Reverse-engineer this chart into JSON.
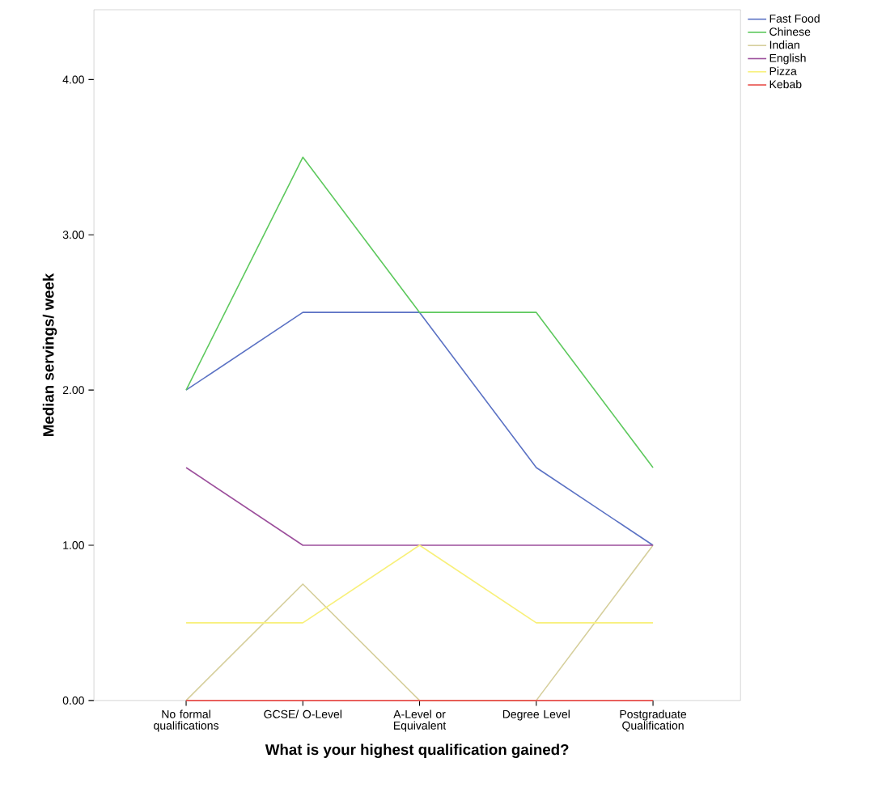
{
  "chart_data": {
    "type": "line",
    "xlabel": "What is your highest qualification gained?",
    "ylabel": "Median servings/ week",
    "categories": [
      "No formal qualifications",
      "GCSE/ O-Level",
      "A-Level or Equivalent",
      "Degree Level",
      "Postgraduate Qualification"
    ],
    "series": [
      {
        "name": "Fast Food",
        "color": "#5b72c4",
        "values": [
          2,
          2.5,
          2.5,
          1.5,
          1
        ]
      },
      {
        "name": "Chinese",
        "color": "#5ec95e",
        "values": [
          2,
          3.5,
          2.5,
          2.5,
          1.5
        ]
      },
      {
        "name": "Indian",
        "color": "#d6cf9c",
        "values": [
          0,
          0.75,
          0,
          0,
          1
        ]
      },
      {
        "name": "English",
        "color": "#9c4f9c",
        "values": [
          1.5,
          1,
          1,
          1,
          1
        ]
      },
      {
        "name": "Pizza",
        "color": "#f8f07a",
        "values": [
          0.5,
          0.5,
          1,
          0.5,
          0.5
        ]
      },
      {
        "name": "Kebab",
        "color": "#e8504c",
        "values": [
          0,
          0,
          0,
          0,
          0
        ]
      }
    ],
    "ylim": [
      0,
      4.45
    ],
    "yticks": [
      {
        "value": 0,
        "label": "0.00"
      },
      {
        "value": 1,
        "label": "1.00"
      },
      {
        "value": 2,
        "label": "2.00"
      },
      {
        "value": 3,
        "label": "3.00"
      },
      {
        "value": 4,
        "label": "4.00"
      }
    ],
    "grid": false,
    "legend": "top right",
    "marker": "none",
    "line_style": "solid"
  }
}
